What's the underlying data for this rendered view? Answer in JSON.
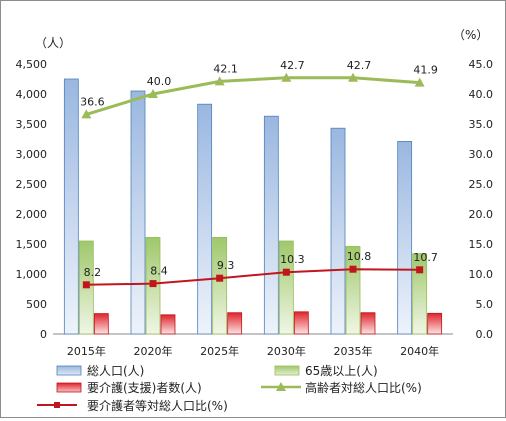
{
  "chart_data": {
    "type": "bar",
    "categories": [
      "2015年",
      "2020年",
      "2025年",
      "2030年",
      "2035年",
      "2040年"
    ],
    "y_left": {
      "unit": "（人）",
      "ylim": [
        0,
        4500
      ],
      "ticks": [
        "0",
        "500",
        "1,000",
        "1,500",
        "2,000",
        "2,500",
        "3,000",
        "3,500",
        "4,000",
        "4,500"
      ]
    },
    "y_right": {
      "unit": "（%）",
      "ylim": [
        0,
        45
      ],
      "ticks": [
        "0.0",
        "5.0",
        "10.0",
        "15.0",
        "20.0",
        "25.0",
        "30.0",
        "35.0",
        "40.0",
        "45.0"
      ]
    },
    "series": [
      {
        "name": "総人口(人)",
        "type": "bar",
        "axis": "left",
        "color": "#4f81bd",
        "values": [
          4250,
          4050,
          3830,
          3630,
          3430,
          3210
        ]
      },
      {
        "name": "65歳以上(人)",
        "type": "bar",
        "axis": "left",
        "color": "#9bbb59",
        "values": [
          1550,
          1610,
          1610,
          1550,
          1460,
          1340
        ]
      },
      {
        "name": "要介護(支援)者数(人)",
        "type": "bar",
        "axis": "left",
        "color": "#e0232b",
        "values": [
          340,
          320,
          355,
          370,
          355,
          345
        ]
      },
      {
        "name": "高齢者対総人口比(%)",
        "type": "line",
        "axis": "right",
        "color": "#9bbb59",
        "marker": "triangle",
        "values": [
          36.6,
          40.0,
          42.1,
          42.7,
          42.7,
          41.9
        ],
        "labels": [
          "36.6",
          "40.0",
          "42.1",
          "42.7",
          "42.7",
          "41.9"
        ]
      },
      {
        "name": "要介護者等対総人口比(%)",
        "type": "line",
        "axis": "right",
        "color": "#c0161e",
        "marker": "square",
        "values": [
          8.2,
          8.4,
          9.3,
          10.3,
          10.8,
          10.7
        ],
        "labels": [
          "8.2",
          "8.4",
          "9.3",
          "10.3",
          "10.8",
          "10.7"
        ]
      }
    ],
    "grid": false,
    "legend": "bottom"
  }
}
